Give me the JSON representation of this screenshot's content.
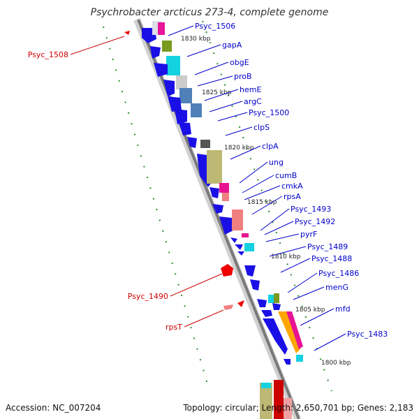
{
  "title": "Psychrobacter arcticus 273-4, complete genome",
  "footer": {
    "accession": "Accession: NC_007204",
    "topology": "Topology: circular; Length: 2,650,701 bp; Genes: 2,183"
  },
  "colors": {
    "forward_gene": "#0000ee",
    "reverse_gene": "#ee0000",
    "forward_label": "#0000cc",
    "reverse_label": "#cc0000",
    "backbone": "#888888",
    "tick": "#228b22"
  },
  "scale_ticks": [
    "1830 kbp",
    "1825 kbp",
    "1820 kbp",
    "1815 kbp",
    "1810 kbp",
    "1805 kbp",
    "1800 kbp"
  ],
  "forward_genes": [
    "Psyc_1506",
    "gapA",
    "obgE",
    "proB",
    "hemE",
    "argC",
    "Psyc_1500",
    "clpS",
    "clpA",
    "ung",
    "cumB",
    "cmkA",
    "rpsA",
    "Psyc_1493",
    "Psyc_1492",
    "pyrF",
    "Psyc_1489",
    "Psyc_1488",
    "Psyc_1486",
    "menG",
    "mfd",
    "Psyc_1483"
  ],
  "reverse_genes": [
    "Psyc_1508",
    "Psyc_1490",
    "rpsT"
  ]
}
